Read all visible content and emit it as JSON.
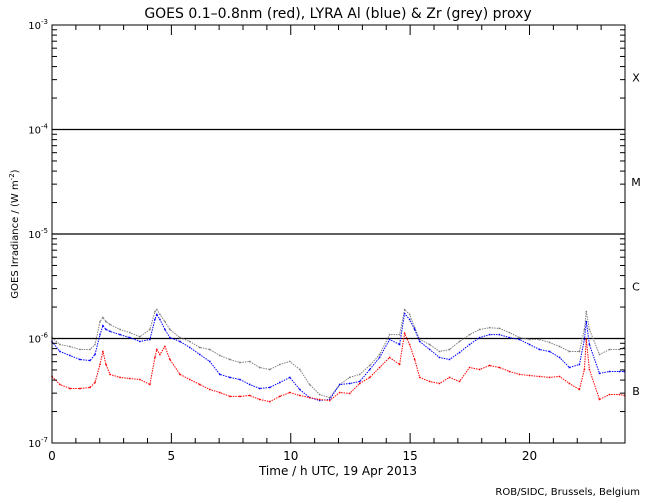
{
  "chart_data": {
    "type": "scatter",
    "title": "GOES 0.1–0.8nm (red), LYRA Al (blue) & Zr (grey) proxy",
    "xlabel": "Time / h UTC, 19 Apr 2013",
    "ylabel": "GOES Irradiance / (W m",
    "ylabel_sup": "-2",
    "ylabel_end": ")",
    "xlim": [
      0,
      24
    ],
    "ylim": [
      1e-07,
      0.001
    ],
    "yscale": "log",
    "xticks": [
      "0",
      "5",
      "10",
      "15",
      "20"
    ],
    "xtick_values": [
      0,
      5,
      10,
      15,
      20
    ],
    "yticks": [
      {
        "base": "10",
        "exp": "-7",
        "value": 1e-07
      },
      {
        "base": "10",
        "exp": "-6",
        "value": 1e-06
      },
      {
        "base": "10",
        "exp": "-5",
        "value": 1e-05
      },
      {
        "base": "10",
        "exp": "-4",
        "value": 0.0001
      },
      {
        "base": "10",
        "exp": "-3",
        "value": 0.001
      }
    ],
    "flare_classes": [
      {
        "label": "X",
        "value": 0.000316
      },
      {
        "label": "M",
        "value": 3.16e-05
      },
      {
        "label": "C",
        "value": 3.16e-06
      },
      {
        "label": "B",
        "value": 3.16e-07
      }
    ],
    "reference_lines": [
      0.0001,
      1e-05,
      1e-06
    ],
    "credit": "ROB/SIDC, Brussels, Belgium",
    "x": [
      0,
      0.33,
      0.75,
      1.17,
      1.59,
      1.8,
      2.01,
      2.13,
      2.26,
      2.43,
      2.85,
      3.26,
      3.68,
      4.1,
      4.31,
      4.39,
      4.52,
      4.73,
      4.94,
      5.36,
      5.77,
      6.19,
      6.61,
      7.03,
      7.45,
      7.87,
      8.28,
      8.7,
      9.12,
      9.54,
      9.96,
      10.38,
      10.79,
      11.21,
      11.63,
      12.05,
      12.47,
      12.89,
      13.31,
      13.72,
      14.14,
      14.56,
      14.77,
      14.98,
      15.19,
      15.4,
      15.82,
      16.23,
      16.65,
      17.07,
      17.49,
      17.91,
      18.33,
      18.74,
      19.16,
      19.58,
      20,
      20.42,
      20.84,
      21.26,
      21.67,
      22.09,
      22.3,
      22.38,
      22.51,
      22.93,
      23.35,
      23.77,
      23.97
    ],
    "series": [
      {
        "name": "LYRA Zr proxy (grey)",
        "color": "#808080",
        "values": [
          1.02e-06,
          8.76e-07,
          8.38e-07,
          7.85e-07,
          7.85e-07,
          8.76e-07,
          1.45e-06,
          1.59e-06,
          1.45e-06,
          1.36e-06,
          1.22e-06,
          1.14e-06,
          1.04e-06,
          1.22e-06,
          1.81e-06,
          1.89e-06,
          1.7e-06,
          1.45e-06,
          1.22e-06,
          1.02e-06,
          9.36e-07,
          8.2e-07,
          7.85e-07,
          6.88e-07,
          6.3e-07,
          5.89e-07,
          6.03e-07,
          5.28e-07,
          5.05e-07,
          5.64e-07,
          6.03e-07,
          5.05e-07,
          3.63e-07,
          2.91e-07,
          2.72e-07,
          3.63e-07,
          4.24e-07,
          4.53e-07,
          5.52e-07,
          7.03e-07,
          1.09e-06,
          1.09e-06,
          1.89e-06,
          1.7e-06,
          1.27e-06,
          9.78e-07,
          8.76e-07,
          7.51e-07,
          7.85e-07,
          9.36e-07,
          1.09e-06,
          1.22e-06,
          1.27e-06,
          1.25e-06,
          1.14e-06,
          1.02e-06,
          9.78e-07,
          9.78e-07,
          9.16e-07,
          8.38e-07,
          7.51e-07,
          7.51e-07,
          1.22e-06,
          1.81e-06,
          1.22e-06,
          7.03e-07,
          7.85e-07,
          7.85e-07,
          8.2e-07
        ]
      },
      {
        "name": "LYRA Al proxy (blue)",
        "color": "#0000ff",
        "values": [
          9.36e-07,
          7.51e-07,
          6.88e-07,
          6.3e-07,
          6.16e-07,
          7.03e-07,
          1.09e-06,
          1.33e-06,
          1.22e-06,
          1.17e-06,
          1.09e-06,
          1.02e-06,
          9.36e-07,
          9.78e-07,
          1.52e-06,
          1.7e-06,
          1.52e-06,
          1.22e-06,
          1.02e-06,
          9.36e-07,
          8.2e-07,
          7.03e-07,
          6.03e-07,
          4.53e-07,
          4.24e-07,
          4.05e-07,
          3.63e-07,
          3.32e-07,
          3.4e-07,
          3.79e-07,
          4.24e-07,
          3.25e-07,
          2.72e-07,
          2.55e-07,
          2.61e-07,
          3.63e-07,
          3.71e-07,
          3.88e-07,
          5.05e-07,
          6.58e-07,
          9.78e-07,
          8.76e-07,
          1.73e-06,
          1.52e-06,
          1.22e-06,
          9.36e-07,
          7.85e-07,
          6.58e-07,
          6.3e-07,
          7.34e-07,
          8.76e-07,
          1.02e-06,
          1.09e-06,
          1.09e-06,
          1.02e-06,
          9.78e-07,
          8.76e-07,
          7.85e-07,
          7.51e-07,
          6.58e-07,
          5.28e-07,
          5.64e-07,
          9.78e-07,
          1.45e-06,
          8.76e-07,
          4.63e-07,
          4.83e-07,
          4.83e-07,
          4.83e-07
        ]
      },
      {
        "name": "GOES 0.1-0.8nm (red)",
        "color": "#ff0000",
        "values": [
          4.33e-07,
          3.63e-07,
          3.32e-07,
          3.32e-07,
          3.4e-07,
          3.79e-07,
          5.64e-07,
          7.51e-07,
          5.64e-07,
          4.53e-07,
          4.24e-07,
          4.14e-07,
          4.05e-07,
          3.63e-07,
          6.58e-07,
          7.85e-07,
          7.03e-07,
          8.38e-07,
          6.3e-07,
          4.53e-07,
          4.05e-07,
          3.63e-07,
          3.25e-07,
          3.04e-07,
          2.79e-07,
          2.79e-07,
          2.85e-07,
          2.61e-07,
          2.49e-07,
          2.79e-07,
          3.04e-07,
          2.85e-07,
          2.72e-07,
          2.61e-07,
          2.55e-07,
          3.04e-07,
          2.98e-07,
          3.71e-07,
          4.24e-07,
          5.28e-07,
          6.58e-07,
          5.64e-07,
          1.12e-06,
          8.76e-07,
          6.3e-07,
          4.24e-07,
          3.88e-07,
          3.71e-07,
          4.24e-07,
          3.88e-07,
          5.28e-07,
          5.05e-07,
          5.52e-07,
          5.28e-07,
          4.83e-07,
          4.53e-07,
          4.43e-07,
          4.33e-07,
          4.24e-07,
          4.33e-07,
          3.71e-07,
          3.25e-07,
          5.05e-07,
          9.78e-07,
          5.05e-07,
          2.61e-07,
          2.91e-07,
          2.91e-07,
          2.85e-07
        ]
      }
    ]
  }
}
